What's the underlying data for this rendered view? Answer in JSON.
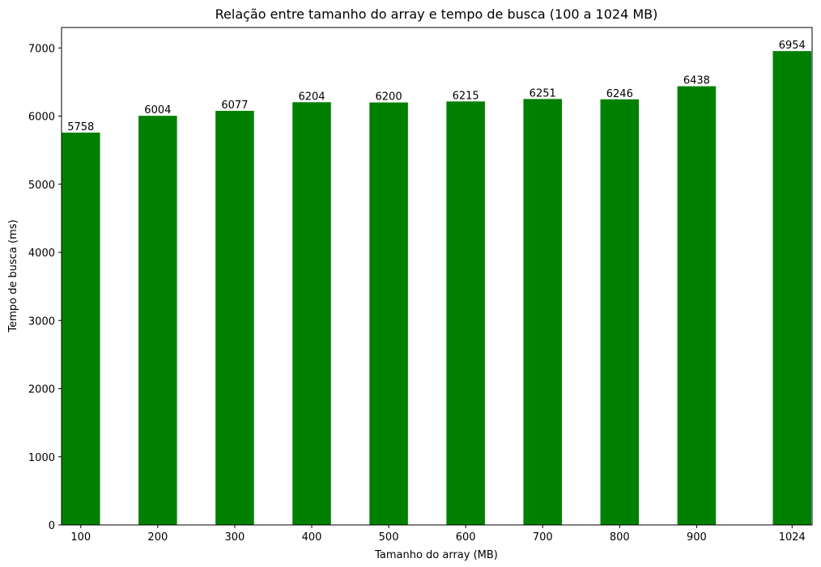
{
  "chart_data": {
    "type": "bar",
    "title": "Relação entre tamanho do array e tempo de busca (100 a 1024 MB)",
    "xlabel": "Tamanho do array (MB)",
    "ylabel": "Tempo de busca (ms)",
    "x": [
      100,
      200,
      300,
      400,
      500,
      600,
      700,
      800,
      900,
      1024
    ],
    "categories": [
      "100",
      "200",
      "300",
      "400",
      "500",
      "600",
      "700",
      "800",
      "900",
      "1024"
    ],
    "values": [
      5758,
      6004,
      6077,
      6204,
      6200,
      6215,
      6251,
      6246,
      6438,
      6954
    ],
    "xlim": [
      75,
      1050
    ],
    "ylim": [
      0,
      7300
    ],
    "yticks": [
      0,
      1000,
      2000,
      3000,
      4000,
      5000,
      6000,
      7000
    ],
    "bar_width": 50,
    "bar_color": "#008000",
    "grid": false,
    "legend": false
  }
}
